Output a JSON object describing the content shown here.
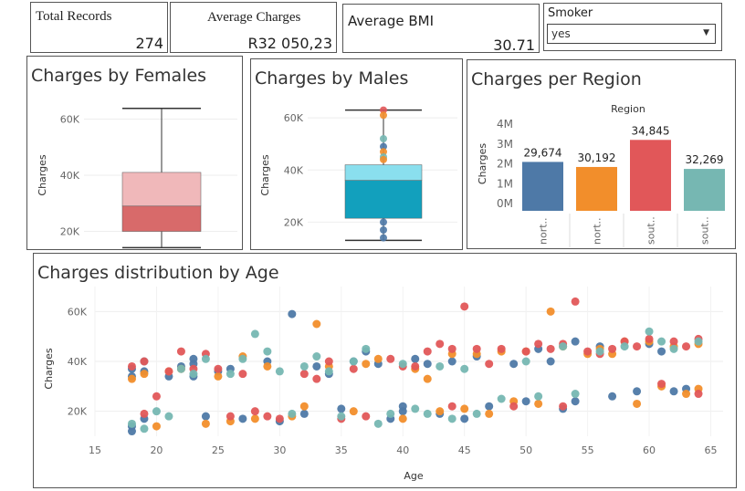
{
  "kpis": {
    "total_records": {
      "label": "Total Records",
      "value": "274"
    },
    "average_charges": {
      "label": "Average Charges",
      "value": "R32 050,23"
    },
    "average_bmi": {
      "label": "Average BMI",
      "value": "30.71"
    }
  },
  "filter": {
    "label": "Smoker",
    "selected": "yes"
  },
  "colors": {
    "female_upper": "#f0b8ba",
    "female_lower": "#d86a6a",
    "male_upper": "#8adfee",
    "male_lower": "#12a0bd",
    "blue": "#4e79a7",
    "orange": "#f28e2b",
    "red": "#e15759",
    "teal": "#76b7b2"
  },
  "chart_data": [
    {
      "type": "box",
      "title": "Charges by Females",
      "ylabel": "Charges",
      "yticks": [
        "20K",
        "40K",
        "60K"
      ],
      "ylim": [
        14000,
        66000
      ],
      "whisker_low": 14200,
      "q1": 20000,
      "median": 29000,
      "q3": 41000,
      "whisker_high": 63800
    },
    {
      "type": "box",
      "title": "Charges by Males",
      "ylabel": "Charges",
      "yticks": [
        "20K",
        "40K",
        "60K"
      ],
      "ylim": [
        10000,
        66000
      ],
      "whisker_low": 13000,
      "q1": 21500,
      "median": 36000,
      "q3": 42000,
      "whisker_high": 63000
    },
    {
      "type": "bar",
      "title": "Charges per Region",
      "header": "Region",
      "ylabel": "Charges",
      "yticks": [
        "0M",
        "1M",
        "2M",
        "3M",
        "4M"
      ],
      "ylim": [
        0,
        4000000
      ],
      "categories": [
        "nort..",
        "nort..",
        "sout..",
        "sout.."
      ],
      "values": [
        2096000,
        1841000,
        3205000,
        1743000
      ],
      "data_labels": [
        "29,674",
        "30,192",
        "34,845",
        "32,269"
      ]
    },
    {
      "type": "scatter",
      "title": "Charges distribution by Age",
      "xlabel": "Age",
      "ylabel": "Charges",
      "xticks": [
        "15",
        "20",
        "25",
        "30",
        "35",
        "40",
        "45",
        "50",
        "55",
        "60",
        "65"
      ],
      "yticks": [
        "20K",
        "40K",
        "60K"
      ],
      "xlim": [
        15,
        66
      ],
      "ylim": [
        10000,
        70000
      ],
      "series": [
        {
          "color_key": "blue",
          "points": [
            [
              18,
              37000
            ],
            [
              18,
              34000
            ],
            [
              18,
              14000
            ],
            [
              18,
              12000
            ],
            [
              19,
              36000
            ],
            [
              19,
              17000
            ],
            [
              21,
              34000
            ],
            [
              23,
              41000
            ],
            [
              23,
              39000
            ],
            [
              23,
              34000
            ],
            [
              24,
              18000
            ],
            [
              26,
              37000
            ],
            [
              27,
              17000
            ],
            [
              29,
              40000
            ],
            [
              30,
              16000
            ],
            [
              31,
              59000
            ],
            [
              32,
              19000
            ],
            [
              33,
              38000
            ],
            [
              34,
              35000
            ],
            [
              35,
              21000
            ],
            [
              36,
              40000
            ],
            [
              37,
              44000
            ],
            [
              38,
              39000
            ],
            [
              39,
              17000
            ],
            [
              40,
              20000
            ],
            [
              40,
              22000
            ],
            [
              41,
              41000
            ],
            [
              42,
              39000
            ],
            [
              43,
              19000
            ],
            [
              44,
              40000
            ],
            [
              45,
              17000
            ],
            [
              46,
              42000
            ],
            [
              47,
              22000
            ],
            [
              49,
              39000
            ],
            [
              50,
              24000
            ],
            [
              51,
              45000
            ],
            [
              52,
              40000
            ],
            [
              53,
              21000
            ],
            [
              54,
              48000
            ],
            [
              54,
              24000
            ],
            [
              56,
              46000
            ],
            [
              57,
              26000
            ],
            [
              59,
              28000
            ],
            [
              60,
              47000
            ],
            [
              61,
              44000
            ],
            [
              62,
              28000
            ],
            [
              63,
              29000
            ],
            [
              19,
              40000
            ],
            [
              22,
              38000
            ],
            [
              25,
              36000
            ]
          ]
        },
        {
          "color_key": "orange",
          "points": [
            [
              18,
              33000
            ],
            [
              19,
              35000
            ],
            [
              20,
              14000
            ],
            [
              22,
              37000
            ],
            [
              24,
              15000
            ],
            [
              25,
              34000
            ],
            [
              27,
              42000
            ],
            [
              28,
              17000
            ],
            [
              29,
              38000
            ],
            [
              31,
              18000
            ],
            [
              32,
              22000
            ],
            [
              33,
              55000
            ],
            [
              34,
              38000
            ],
            [
              36,
              20000
            ],
            [
              37,
              39000
            ],
            [
              38,
              41000
            ],
            [
              40,
              17000
            ],
            [
              41,
              37000
            ],
            [
              42,
              33000
            ],
            [
              43,
              20000
            ],
            [
              44,
              43000
            ],
            [
              45,
              21000
            ],
            [
              46,
              43000
            ],
            [
              47,
              19000
            ],
            [
              48,
              44000
            ],
            [
              49,
              24000
            ],
            [
              50,
              44000
            ],
            [
              51,
              23000
            ],
            [
              52,
              60000
            ],
            [
              53,
              46000
            ],
            [
              55,
              43000
            ],
            [
              56,
              45000
            ],
            [
              57,
              43000
            ],
            [
              58,
              48000
            ],
            [
              59,
              23000
            ],
            [
              60,
              48000
            ],
            [
              61,
              30000
            ],
            [
              62,
              46000
            ],
            [
              63,
              27000
            ],
            [
              64,
              29000
            ],
            [
              64,
              47000
            ],
            [
              21,
              36000
            ],
            [
              26,
              16000
            ]
          ]
        },
        {
          "color_key": "red",
          "points": [
            [
              18,
              38000
            ],
            [
              19,
              40000
            ],
            [
              20,
              26000
            ],
            [
              21,
              36000
            ],
            [
              22,
              44000
            ],
            [
              23,
              37000
            ],
            [
              24,
              43000
            ],
            [
              25,
              37000
            ],
            [
              26,
              18000
            ],
            [
              27,
              35000
            ],
            [
              29,
              18000
            ],
            [
              30,
              17000
            ],
            [
              32,
              35000
            ],
            [
              33,
              33000
            ],
            [
              34,
              40000
            ],
            [
              35,
              17000
            ],
            [
              36,
              37000
            ],
            [
              37,
              18000
            ],
            [
              39,
              41000
            ],
            [
              40,
              38000
            ],
            [
              41,
              38000
            ],
            [
              42,
              44000
            ],
            [
              43,
              47000
            ],
            [
              44,
              45000
            ],
            [
              45,
              62000
            ],
            [
              46,
              45000
            ],
            [
              47,
              39000
            ],
            [
              48,
              45000
            ],
            [
              49,
              22000
            ],
            [
              50,
              44000
            ],
            [
              51,
              47000
            ],
            [
              52,
              45000
            ],
            [
              53,
              47000
            ],
            [
              54,
              64000
            ],
            [
              55,
              44000
            ],
            [
              56,
              43000
            ],
            [
              57,
              45000
            ],
            [
              58,
              48000
            ],
            [
              59,
              46000
            ],
            [
              60,
              49000
            ],
            [
              61,
              31000
            ],
            [
              62,
              48000
            ],
            [
              63,
              46000
            ],
            [
              64,
              49000
            ],
            [
              64,
              27000
            ],
            [
              19,
              19000
            ],
            [
              28,
              20000
            ],
            [
              44,
              22000
            ],
            [
              53,
              22000
            ]
          ]
        },
        {
          "color_key": "teal",
          "points": [
            [
              18,
              15000
            ],
            [
              19,
              13000
            ],
            [
              20,
              20000
            ],
            [
              21,
              18000
            ],
            [
              22,
              37000
            ],
            [
              24,
              41000
            ],
            [
              26,
              35000
            ],
            [
              27,
              41000
            ],
            [
              28,
              51000
            ],
            [
              29,
              44000
            ],
            [
              30,
              36000
            ],
            [
              31,
              19000
            ],
            [
              33,
              42000
            ],
            [
              34,
              36000
            ],
            [
              35,
              18000
            ],
            [
              36,
              40000
            ],
            [
              37,
              45000
            ],
            [
              38,
              15000
            ],
            [
              39,
              19000
            ],
            [
              40,
              39000
            ],
            [
              41,
              21000
            ],
            [
              42,
              19000
            ],
            [
              43,
              38000
            ],
            [
              44,
              17000
            ],
            [
              45,
              37000
            ],
            [
              46,
              19000
            ],
            [
              48,
              25000
            ],
            [
              50,
              40000
            ],
            [
              51,
              26000
            ],
            [
              53,
              46000
            ],
            [
              54,
              27000
            ],
            [
              56,
              44000
            ],
            [
              58,
              46000
            ],
            [
              60,
              52000
            ],
            [
              61,
              48000
            ],
            [
              62,
              45000
            ],
            [
              64,
              48000
            ],
            [
              23,
              35000
            ],
            [
              32,
              38000
            ]
          ]
        }
      ]
    }
  ]
}
